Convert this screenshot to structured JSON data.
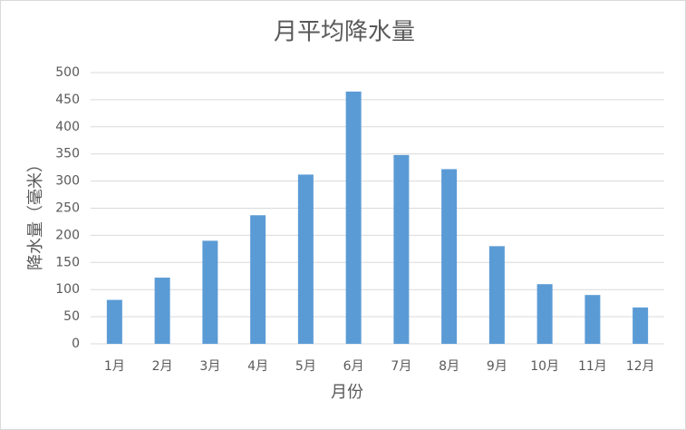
{
  "chart_data": {
    "type": "bar",
    "title": "月平均降水量",
    "y_label": "降水量（毫米）",
    "x_label": "月份",
    "categories": [
      "1月",
      "2月",
      "3月",
      "4月",
      "5月",
      "6月",
      "7月",
      "8月",
      "9月",
      "10月",
      "11月",
      "12月"
    ],
    "values": [
      81,
      122,
      190,
      237,
      312,
      465,
      348,
      322,
      180,
      110,
      90,
      67
    ],
    "color": "#5b9bd5",
    "ylim": [
      0,
      500
    ],
    "yticks": [
      0,
      50,
      100,
      150,
      200,
      250,
      300,
      350,
      400,
      450,
      500
    ],
    "grid": true
  }
}
